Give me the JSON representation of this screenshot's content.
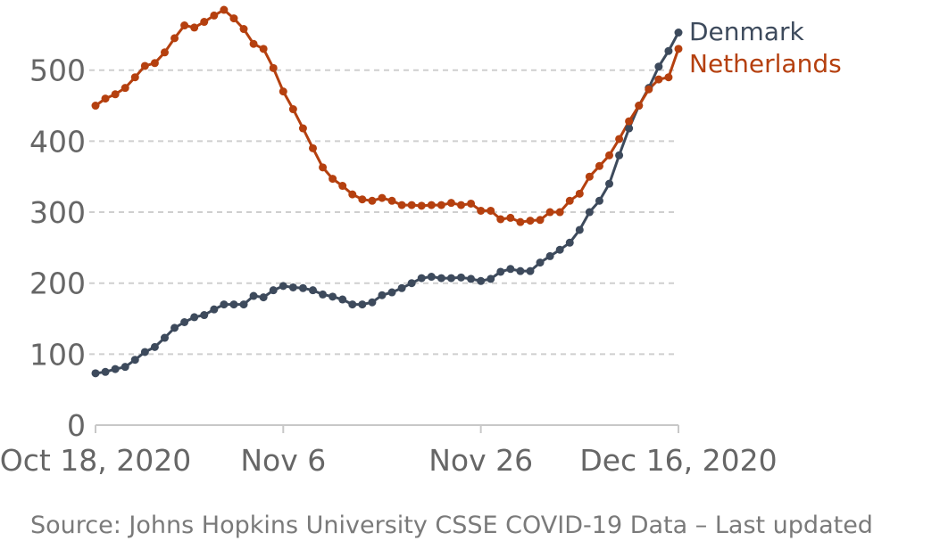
{
  "chart_data": {
    "type": "line",
    "x_labels": [
      "Oct 18, 2020",
      "Nov 6",
      "Nov 26",
      "Dec 16, 2020"
    ],
    "x_label_days": [
      0,
      19,
      39,
      59
    ],
    "ylim": [
      0,
      580
    ],
    "y_ticks": [
      0,
      100,
      200,
      300,
      400,
      500
    ],
    "grid": true,
    "series": [
      {
        "name": "Denmark",
        "color": "#3d4a5c",
        "values": [
          73,
          75,
          79,
          82,
          92,
          103,
          110,
          123,
          137,
          145,
          152,
          155,
          163,
          170,
          170,
          170,
          182,
          180,
          190,
          196,
          194,
          193,
          190,
          184,
          181,
          177,
          170,
          170,
          173,
          183,
          187,
          193,
          200,
          207,
          209,
          207,
          207,
          208,
          206,
          203,
          206,
          216,
          220,
          217,
          217,
          229,
          238,
          247,
          257,
          275,
          300,
          316,
          340,
          380,
          418,
          450,
          475,
          505,
          527,
          553
        ]
      },
      {
        "name": "Netherlands",
        "color": "#b5400f",
        "values": [
          450,
          460,
          466,
          475,
          490,
          506,
          510,
          525,
          545,
          563,
          560,
          568,
          577,
          585,
          573,
          558,
          537,
          530,
          503,
          470,
          445,
          418,
          390,
          363,
          347,
          337,
          325,
          318,
          316,
          320,
          316,
          310,
          310,
          309,
          310,
          310,
          313,
          310,
          312,
          302,
          302,
          290,
          292,
          286,
          288,
          289,
          300,
          300,
          316,
          326,
          350,
          365,
          380,
          403,
          428,
          450,
          473,
          487,
          490,
          530
        ]
      }
    ],
    "source_text": "Source: Johns Hopkins University CSSE COVID-19 Data – Last updated"
  }
}
